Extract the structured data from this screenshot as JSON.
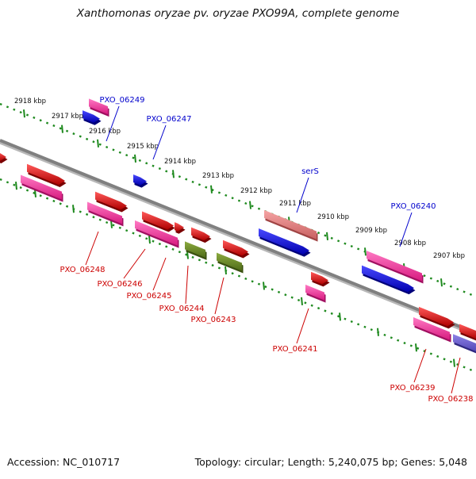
{
  "title": "Xanthomonas oryzae pv. oryzae PXO99A, complete genome",
  "footer": {
    "accession": "Accession: NC_010717",
    "summary": "Topology: circular; Length: 5,240,075 bp; Genes: 5,048"
  },
  "colors": {
    "backbone": "#808080",
    "tick_track": "#1f8a1f",
    "plus_label": "#0000cc",
    "minus_label": "#cc0000",
    "gene_red": "#ff0000",
    "gene_pink": "#ff3fa0",
    "gene_blue": "#0000ff",
    "gene_salmon": "#f08080",
    "gene_olive": "#6b8e23",
    "gene_slate": "#6a5acd"
  },
  "scale_labels": [
    "2918 kbp",
    "2917 kbp",
    "2916 kbp",
    "2915 kbp",
    "2914 kbp",
    "2913 kbp",
    "2912 kbp",
    "2911 kbp",
    "2910 kbp",
    "2909 kbp",
    "2908 kbp",
    "2907 kbp"
  ],
  "plus_genes": [
    "PXO_06249",
    "PXO_06247",
    "serS",
    "PXO_06240"
  ],
  "minus_genes": [
    "PXO_06248",
    "PXO_06246",
    "PXO_06245",
    "PXO_06244",
    "PXO_06243",
    "PXO_06241",
    "PXO_06239",
    "PXO_06238"
  ]
}
